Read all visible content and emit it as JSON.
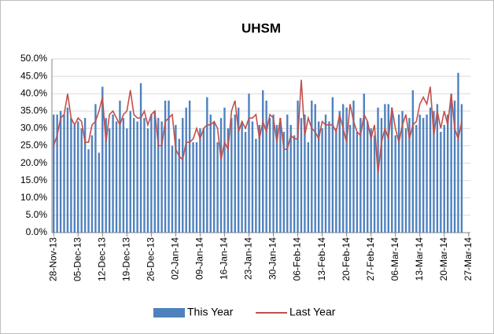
{
  "chart_data": {
    "type": "bar-line",
    "title": "UHSM",
    "categories": [
      "28-Nov-13",
      null,
      null,
      null,
      null,
      null,
      null,
      "05-Dec-13",
      null,
      null,
      null,
      null,
      null,
      null,
      "12-Dec-13",
      null,
      null,
      null,
      null,
      null,
      null,
      "19-Dec-13",
      null,
      null,
      null,
      null,
      null,
      null,
      "26-Dec-13",
      null,
      null,
      null,
      null,
      null,
      null,
      "02-Jan-14",
      null,
      null,
      null,
      null,
      null,
      null,
      "09-Jan-14",
      null,
      null,
      null,
      null,
      null,
      null,
      "16-Jan-14",
      null,
      null,
      null,
      null,
      null,
      null,
      "23-Jan-14",
      null,
      null,
      null,
      null,
      null,
      null,
      "30-Jan-14",
      null,
      null,
      null,
      null,
      null,
      null,
      "06-Feb-14",
      null,
      null,
      null,
      null,
      null,
      null,
      "13-Feb-14",
      null,
      null,
      null,
      null,
      null,
      null,
      "20-Feb-14",
      null,
      null,
      null,
      null,
      null,
      null,
      "27-Feb-14",
      null,
      null,
      null,
      null,
      null,
      null,
      "06-Mar-14",
      null,
      null,
      null,
      null,
      null,
      null,
      "13-Mar-14",
      null,
      null,
      null,
      null,
      null,
      null,
      "20-Mar-14",
      null,
      null,
      null,
      null,
      null,
      null,
      "27-Mar-14"
    ],
    "series": [
      {
        "name": "This Year",
        "type": "bar",
        "color": "#4f81bd",
        "values": [
          34,
          34,
          35,
          34,
          36,
          33,
          31,
          32,
          30,
          33,
          24,
          28,
          37,
          23,
          42,
          33,
          30,
          34,
          32,
          38,
          33,
          30,
          35,
          33,
          32,
          43,
          33,
          30,
          34,
          35,
          33,
          32,
          38,
          38,
          25,
          31,
          27,
          33,
          36,
          38,
          26,
          26,
          30,
          30,
          39,
          34,
          32,
          26,
          33,
          36,
          30,
          33,
          34,
          36,
          32,
          29,
          40,
          32,
          27,
          31,
          41,
          38,
          33,
          34,
          31,
          33,
          29,
          34,
          31,
          28,
          38,
          33,
          34,
          26,
          38,
          37,
          32,
          30,
          34,
          32,
          39,
          30,
          35,
          37,
          36,
          31,
          38,
          29,
          33,
          40,
          32,
          30,
          28,
          36,
          33,
          37,
          37,
          36,
          28,
          34,
          35,
          30,
          33,
          41,
          31,
          34,
          33,
          34,
          36,
          35,
          37,
          29,
          31,
          34,
          40,
          38,
          46,
          37,
          null,
          null
        ]
      },
      {
        "name": "Last Year",
        "type": "line",
        "color": "#c0504d",
        "values": [
          25,
          28,
          33,
          34,
          40,
          33,
          31,
          33,
          32,
          26,
          26,
          31,
          32,
          35,
          39,
          26,
          34,
          35,
          33,
          31,
          34,
          35,
          41,
          34,
          33,
          33,
          35,
          31,
          34,
          35,
          25,
          25,
          32,
          33,
          34,
          24,
          22,
          21,
          26,
          26,
          27,
          30,
          27,
          30,
          31,
          31,
          32,
          30,
          21,
          26,
          24,
          35,
          38,
          29,
          32,
          30,
          33,
          33,
          34,
          27,
          32,
          29,
          34,
          33,
          26,
          33,
          24,
          24,
          28,
          27,
          27,
          44,
          28,
          33,
          30,
          29,
          27,
          32,
          31,
          31,
          31,
          29,
          34,
          30,
          26,
          37,
          32,
          29,
          28,
          34,
          32,
          27,
          31,
          17,
          26,
          30,
          27,
          36,
          30,
          26,
          31,
          34,
          27,
          31,
          32,
          37,
          39,
          37,
          42,
          28,
          35,
          30,
          35,
          31,
          40,
          30,
          27,
          32,
          null,
          null
        ]
      }
    ],
    "ylim": [
      0,
      50
    ],
    "yticks": [
      {
        "value": 0,
        "label": "0.0%"
      },
      {
        "value": 5,
        "label": "5.0%"
      },
      {
        "value": 10,
        "label": "10.0%"
      },
      {
        "value": 15,
        "label": "15.0%"
      },
      {
        "value": 20,
        "label": "20.0%"
      },
      {
        "value": 25,
        "label": "25.0%"
      },
      {
        "value": 30,
        "label": "30.0%"
      },
      {
        "value": 35,
        "label": "35.0%"
      },
      {
        "value": 40,
        "label": "40.0%"
      },
      {
        "value": 45,
        "label": "45.0%"
      },
      {
        "value": 50,
        "label": "50.0%"
      }
    ],
    "grid": true,
    "legend": "bottom"
  }
}
